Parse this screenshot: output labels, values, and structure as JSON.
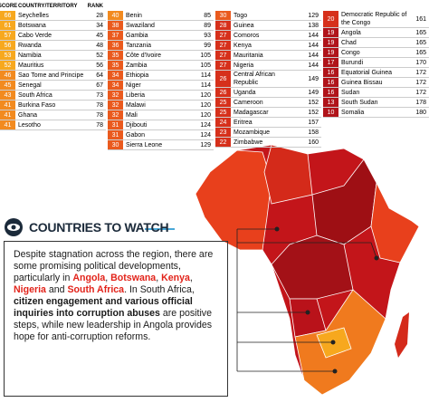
{
  "table": {
    "headers": [
      "SCORE",
      "COUNTRY/TERRITORY",
      "RANK"
    ],
    "columns": [
      [
        [
          66,
          "Seychelles",
          28
        ],
        [
          61,
          "Botswana",
          34
        ],
        [
          57,
          "Cabo Verde",
          45
        ],
        [
          56,
          "Rwanda",
          48
        ],
        [
          53,
          "Namibia",
          52
        ],
        [
          52,
          "Mauritius",
          56
        ],
        [
          46,
          "Sao Tome and Principe",
          64
        ],
        [
          45,
          "Senegal",
          67
        ],
        [
          43,
          "South Africa",
          73
        ],
        [
          41,
          "Burkina Faso",
          78
        ],
        [
          41,
          "Ghana",
          78
        ],
        [
          41,
          "Lesotho",
          78
        ]
      ],
      [
        [
          40,
          "Benin",
          85
        ],
        [
          38,
          "Swaziland",
          89
        ],
        [
          37,
          "Gambia",
          93
        ],
        [
          36,
          "Tanzania",
          99
        ],
        [
          35,
          "Côte d'Ivoire",
          105
        ],
        [
          35,
          "Zambia",
          105
        ],
        [
          34,
          "Ethiopia",
          114
        ],
        [
          34,
          "Niger",
          114
        ],
        [
          32,
          "Liberia",
          120
        ],
        [
          32,
          "Malawi",
          120
        ],
        [
          32,
          "Mali",
          120
        ],
        [
          31,
          "Djibouti",
          124
        ],
        [
          31,
          "Gabon",
          124
        ],
        [
          30,
          "Sierra Leone",
          129
        ]
      ],
      [
        [
          30,
          "Togo",
          129
        ],
        [
          28,
          "Guinea",
          138
        ],
        [
          27,
          "Comoros",
          144
        ],
        [
          27,
          "Kenya",
          144
        ],
        [
          27,
          "Mauritania",
          144
        ],
        [
          27,
          "Nigeria",
          144
        ],
        [
          26,
          "Central African Republic",
          149
        ],
        [
          26,
          "Uganda",
          149
        ],
        [
          25,
          "Cameroon",
          152
        ],
        [
          25,
          "Madagascar",
          152
        ],
        [
          24,
          "Eritrea",
          157
        ],
        [
          23,
          "Mozambique",
          158
        ],
        [
          22,
          "Zimbabwe",
          160
        ]
      ],
      [
        [
          20,
          "Democratic Republic of the Congo",
          161
        ],
        [
          19,
          "Angola",
          165
        ],
        [
          19,
          "Chad",
          165
        ],
        [
          19,
          "Congo",
          165
        ],
        [
          17,
          "Burundi",
          170
        ],
        [
          16,
          "Equatorial Guinea",
          172
        ],
        [
          16,
          "Guinea Bissau",
          172
        ],
        [
          16,
          "Sudan",
          172
        ],
        [
          13,
          "South Sudan",
          178
        ],
        [
          10,
          "Somalia",
          180
        ]
      ]
    ]
  },
  "watch": {
    "title": "COUNTRIES TO WATCH",
    "parts": [
      {
        "text": "Despite stagnation across the region, there are some promising political developments, particularly in ",
        "style": "plain"
      },
      {
        "text": "Angola",
        "style": "highlight"
      },
      {
        "text": ", ",
        "style": "plain"
      },
      {
        "text": "Botswana",
        "style": "highlight"
      },
      {
        "text": ", ",
        "style": "plain"
      },
      {
        "text": "Kenya",
        "style": "highlight"
      },
      {
        "text": ", ",
        "style": "plain"
      },
      {
        "text": "Nigeria",
        "style": "highlight"
      },
      {
        "text": " and ",
        "style": "plain"
      },
      {
        "text": "South Africa",
        "style": "highlight"
      },
      {
        "text": ". In South Africa, ",
        "style": "plain"
      },
      {
        "text": "citizen engagement and various official inquiries into corruption abuses",
        "style": "bold"
      },
      {
        "text": " are positive steps, while new leadership in Angola provides hope for anti-corruption reforms.",
        "style": "plain"
      }
    ]
  }
}
